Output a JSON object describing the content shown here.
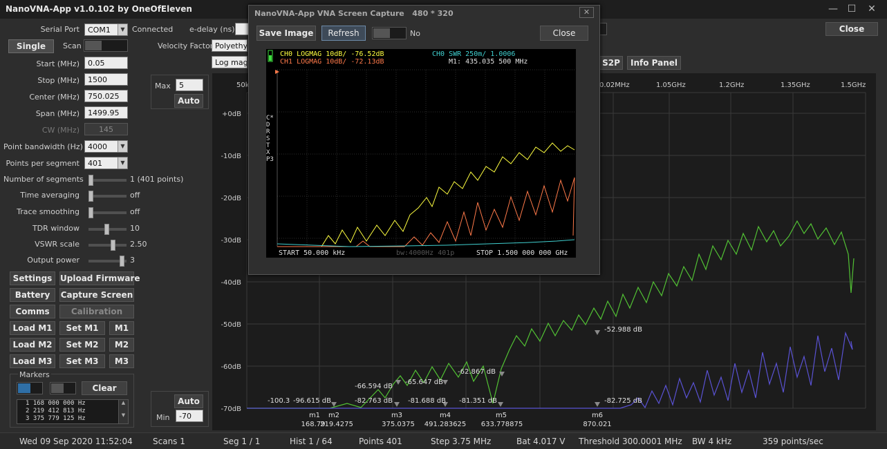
{
  "window": {
    "title": "NanoVNA-App v1.0.102 by OneOfEleven",
    "min": "—",
    "max": "☐",
    "close": "✕"
  },
  "connection": {
    "serial_port_label": "Serial Port",
    "serial_port_value": "COM1",
    "status": "Connected",
    "edelay_label": "e-delay (ns)"
  },
  "sweep": {
    "single_label": "Single",
    "scan_label": "Scan",
    "start_label": "Start (MHz)",
    "start_value": "0.05",
    "stop_label": "Stop (MHz)",
    "stop_value": "1500",
    "center_label": "Center (MHz)",
    "center_value": "750.025",
    "span_label": "Span (MHz)",
    "span_value": "1499.95",
    "cw_label": "CW (MHz)",
    "cw_value": "145",
    "pbw_label": "Point bandwidth (Hz)",
    "pbw_value": "4000",
    "pps_label": "Points per segment",
    "pps_value": "401",
    "segments_label": "Number of segments",
    "segments_value": "1 (401 points)",
    "time_avg_label": "Time averaging",
    "time_avg_value": "off",
    "smoothing_label": "Trace smoothing",
    "smoothing_value": "off",
    "tdr_label": "TDR window",
    "tdr_value": "10",
    "vswr_label": "VSWR scale",
    "vswr_value": "2.50",
    "power_label": "Output power",
    "power_value": "3"
  },
  "scale": {
    "max_label": "Max",
    "max_value": "5",
    "auto_top": "Auto",
    "min_label": "Min",
    "min_value": "-70",
    "auto_bottom": "Auto"
  },
  "velocity": {
    "label": "Velocity Factor",
    "value": "Polyethyle",
    "mode_value": "Log mag S"
  },
  "buttons": {
    "settings": "Settings",
    "upload_firmware": "Upload Firmware",
    "battery": "Battery",
    "capture_screen": "Capture Screen",
    "comms": "Comms",
    "calibration": "Calibration",
    "load_m1": "Load M1",
    "set_m1": "Set M1",
    "m1": "M1",
    "load_m2": "Load M2",
    "set_m2": "Set M2",
    "m2": "M2",
    "load_m3": "Load M3",
    "set_m3": "Set M3",
    "m3": "M3",
    "close": "Close",
    "s2p": "S2P",
    "info_panel": "Info Panel"
  },
  "markers_panel": {
    "title": "Markers",
    "clear": "Clear",
    "rows": [
      "1     168 000 000 Hz",
      "2     219 412 813 Hz",
      "3     375 779 125 Hz"
    ]
  },
  "plot": {
    "x_ticks": [
      "50k",
      "0.02MHz",
      "1.05GHz",
      "1.2GHz",
      "1.35GHz",
      "1.5GHz"
    ],
    "y_ticks": [
      "+0dB",
      "-10dB",
      "-20dB",
      "-30dB",
      "-40dB",
      "-50dB",
      "-60dB",
      "-70dB"
    ],
    "markers": [
      {
        "name": "m1",
        "freq": "168.79",
        "readout": "-100.3"
      },
      {
        "name": "m2",
        "freq": "219.4275",
        "readout": "-96.615 dB"
      },
      {
        "name": "m3",
        "freq": "375.0375",
        "readout": "-82.763 dB"
      },
      {
        "name": "m4",
        "freq": "491.283625",
        "readout": "-81.688 dB"
      },
      {
        "name": "m5",
        "freq": "633.778875",
        "readout": "-81.351 dB"
      },
      {
        "name": "m6",
        "freq": "870.021",
        "readout": "-82.725 dB"
      }
    ],
    "peak_labels": [
      "-66.594 dB",
      "-65.647 dB",
      "-62.867 dB",
      "-52.988 dB"
    ],
    "colors": {
      "s11": "#52c234",
      "s21": "#5a52d4",
      "grid": "#3a3a3a"
    }
  },
  "dialog": {
    "title": "NanoVNA-App VNA Screen Capture",
    "size": "480 * 320",
    "save_image": "Save Image",
    "refresh": "Refresh",
    "toggle_value": "No",
    "close": "Close",
    "close_x": "✕",
    "screen": {
      "ch0": "CH0 LOGMAG 10dB/ -76.52dB",
      "ch1": "CH1 LOGMAG 10dB/ -72.13dB",
      "ch0_swr": "CH0 SWR 250m/ 1.0006",
      "marker": "M1: 435.035 500 MHz",
      "start": "START 50.000 kHz",
      "bw": "bw:4000Hz 401p",
      "stop": "STOP 1.500 000 000 GHz",
      "side_menu": [
        "C*",
        "D",
        "R",
        "S",
        "T",
        "X",
        "P3"
      ]
    }
  },
  "status": {
    "datetime": "Wed 09 Sep 2020 11:52:04",
    "scans": "Scans 1",
    "seg": "Seg 1 / 1",
    "hist": "Hist 1 / 64",
    "points": "Points 401",
    "step": "Step 3.75 MHz",
    "bat": "Bat 4.017 V",
    "threshold": "Threshold 300.0001 MHz",
    "bw": "BW 4 kHz",
    "rate": "359 points/sec"
  }
}
